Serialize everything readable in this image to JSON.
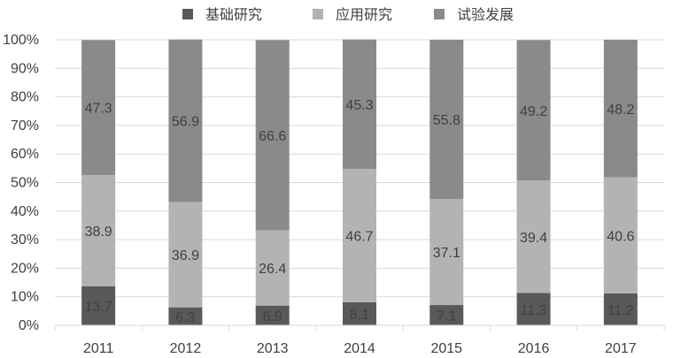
{
  "chart_data": {
    "type": "bar",
    "stacked": true,
    "percent": true,
    "categories": [
      "2011",
      "2012",
      "2013",
      "2014",
      "2015",
      "2016",
      "2017"
    ],
    "series": [
      {
        "name": "基础研究",
        "color": "#595959",
        "values": [
          13.7,
          6.3,
          6.9,
          8.1,
          7.1,
          11.3,
          11.2
        ]
      },
      {
        "name": "应用研究",
        "color": "#b3b3b3",
        "values": [
          38.9,
          36.9,
          26.4,
          46.7,
          37.1,
          39.4,
          40.6
        ]
      },
      {
        "name": "试验发展",
        "color": "#8a8a8a",
        "values": [
          47.3,
          56.9,
          66.6,
          45.3,
          55.8,
          49.2,
          48.2
        ]
      }
    ],
    "y_ticks": [
      "0%",
      "10%",
      "20%",
      "30%",
      "40%",
      "50%",
      "60%",
      "70%",
      "80%",
      "90%",
      "100%"
    ],
    "ylim": [
      0,
      100
    ],
    "grid": true,
    "legend_position": "top-center",
    "title": "",
    "xlabel": "",
    "ylabel": ""
  }
}
